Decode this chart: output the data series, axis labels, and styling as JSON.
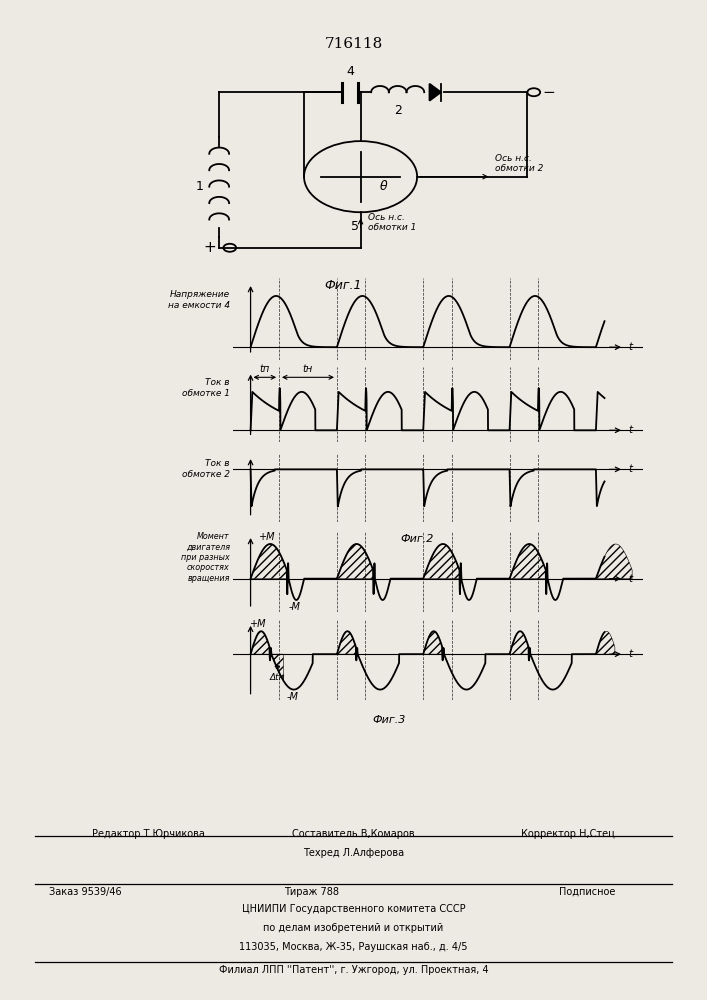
{
  "title": "716118",
  "bg_color": "#ede9e3",
  "fig1_label": "Фиг.1",
  "fig2_label": "Фиг.2",
  "fig3_label": "Фиг.3",
  "graph1_ylabel": "Напряжение\nна емкости 4",
  "graph2_ylabel": "Ток в\nобмотке 1",
  "graph3_ylabel": "Ток в\nобмотке 2",
  "graph4_ylabel": "Момент\nдвигателя\nпри разных\nскоростях\nвращения",
  "footer_line1_col": "Составитель В,Комаров",
  "footer_line2_col": "Техред Л.Алферова",
  "footer_editor": "Редактор Т.Юрчикова",
  "footer_corrector": "Корректор Н,Стец",
  "footer_order": "Заказ 9539/46",
  "footer_tiraj": "Тираж 788",
  "footer_podpisnoe": "Подписное",
  "footer_tsniip": "ЦНИИПИ Государственного комитета СССР",
  "footer_dela": "по делам изобретений и открытий",
  "footer_addr": "113035, Москва, Ж-35, Раушская наб., д. 4/5",
  "footer_filial": "Филиал ЛПП ''Патент'', г. Ужгород, ул. Проектная, 4",
  "t_label": "t",
  "+M_label": "+M",
  "-M_label": "-M",
  "tp_label": "tп",
  "tn_label": "tн",
  "dtn_label": "Δtн",
  "axis2_label": "Ось н.с.\nобмотки 2",
  "axis1_label": "Ось н.с.\nобмотки 1",
  "theta_label": "θ"
}
